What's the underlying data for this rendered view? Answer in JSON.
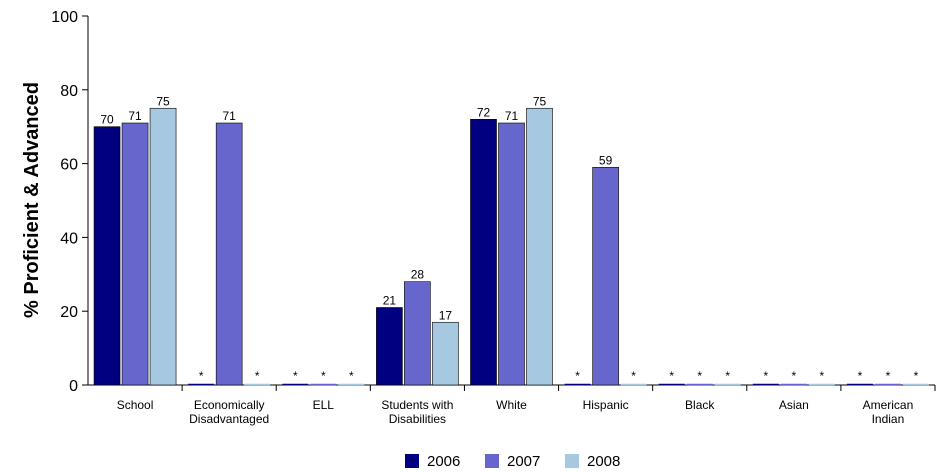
{
  "chart_data": {
    "type": "bar",
    "ylabel": "% Proficient & Advanced",
    "xlabel": "",
    "ylim": [
      0,
      100
    ],
    "yticks": [
      "0",
      "20",
      "40",
      "60",
      "80",
      "100"
    ],
    "categories": [
      [
        "School"
      ],
      [
        "Economically",
        "Disadvantaged"
      ],
      [
        "ELL"
      ],
      [
        "Students with",
        "Disabilities"
      ],
      [
        "White"
      ],
      [
        "Hispanic"
      ],
      [
        "Black"
      ],
      [
        "Asian"
      ],
      [
        "American",
        "Indian"
      ]
    ],
    "series": [
      {
        "name": "2006",
        "color": "#000080",
        "values": [
          70,
          null,
          null,
          21,
          72,
          null,
          null,
          null,
          null
        ],
        "labels": [
          "70",
          "*",
          "*",
          "21",
          "72",
          "*",
          "*",
          "*",
          "*"
        ]
      },
      {
        "name": "2007",
        "color": "#6666cc",
        "values": [
          71,
          71,
          null,
          28,
          71,
          59,
          null,
          null,
          null
        ],
        "labels": [
          "71",
          "71",
          "*",
          "28",
          "71",
          "59",
          "*",
          "*",
          "*"
        ]
      },
      {
        "name": "2008",
        "color": "#a6c8e0",
        "values": [
          75,
          null,
          null,
          17,
          75,
          null,
          null,
          null,
          null
        ],
        "labels": [
          "75",
          "*",
          "*",
          "17",
          "75",
          "*",
          "*",
          "*",
          "*"
        ]
      }
    ],
    "grid": false,
    "legend_position": "bottom"
  }
}
